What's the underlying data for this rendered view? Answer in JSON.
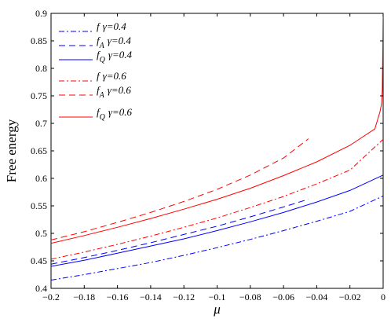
{
  "chart_data": {
    "type": "line",
    "xlabel": "μ",
    "ylabel": "Free energy",
    "xlim": [
      -0.2,
      0
    ],
    "ylim": [
      0.4,
      0.9
    ],
    "x_ticks": [
      -0.2,
      -0.18,
      -0.16,
      -0.14,
      -0.12,
      -0.1,
      -0.08,
      -0.06,
      -0.04,
      -0.02,
      0
    ],
    "x_tick_labels": [
      "−0.2",
      "−0.18",
      "−0.16",
      "−0.14",
      "−0.12",
      "−0.1",
      "−0.08",
      "−0.06",
      "−0.04",
      "−0.02",
      "0"
    ],
    "y_ticks": [
      0.4,
      0.45,
      0.5,
      0.55,
      0.6,
      0.65,
      0.7,
      0.75,
      0.8,
      0.85,
      0.9
    ],
    "y_tick_labels": [
      "0.4",
      "0.45",
      "0.5",
      "0.55",
      "0.6",
      "0.65",
      "0.7",
      "0.75",
      "0.8",
      "0.85",
      "0.9"
    ],
    "grid": false,
    "legend_position": "top-left",
    "series": [
      {
        "name": "f γ=0.4",
        "legend_main": "f",
        "legend_sub": "",
        "legend_suffix": "γ=0.4",
        "color": "#0000ff",
        "dash": "dashdot",
        "x": [
          -0.2,
          -0.18,
          -0.16,
          -0.14,
          -0.12,
          -0.1,
          -0.08,
          -0.06,
          -0.04,
          -0.02,
          0
        ],
        "y": [
          0.415,
          0.425,
          0.436,
          0.447,
          0.46,
          0.474,
          0.489,
          0.505,
          0.522,
          0.54,
          0.568
        ]
      },
      {
        "name": "f_A γ=0.4",
        "legend_main": "f",
        "legend_sub": "A",
        "legend_suffix": "γ=0.4",
        "color": "#0000ff",
        "dash": "dashed",
        "x": [
          -0.2,
          -0.18,
          -0.16,
          -0.14,
          -0.12,
          -0.1,
          -0.08,
          -0.06,
          -0.045
        ],
        "y": [
          0.444,
          0.456,
          0.469,
          0.483,
          0.498,
          0.513,
          0.53,
          0.548,
          0.562
        ]
      },
      {
        "name": "f_Q γ=0.4",
        "legend_main": "f",
        "legend_sub": "Q",
        "legend_suffix": "γ=0.4",
        "color": "#0000ff",
        "dash": "solid",
        "x": [
          -0.2,
          -0.18,
          -0.16,
          -0.14,
          -0.12,
          -0.1,
          -0.08,
          -0.06,
          -0.04,
          -0.02,
          0
        ],
        "y": [
          0.44,
          0.451,
          0.464,
          0.477,
          0.49,
          0.505,
          0.521,
          0.538,
          0.557,
          0.578,
          0.606
        ]
      },
      {
        "name": "f γ=0.6",
        "legend_main": "f",
        "legend_sub": "",
        "legend_suffix": "γ=0.6",
        "color": "#ff0000",
        "dash": "dashdot",
        "x": [
          -0.2,
          -0.18,
          -0.16,
          -0.14,
          -0.12,
          -0.1,
          -0.08,
          -0.06,
          -0.04,
          -0.02,
          0
        ],
        "y": [
          0.453,
          0.466,
          0.48,
          0.495,
          0.511,
          0.528,
          0.547,
          0.567,
          0.59,
          0.615,
          0.671
        ]
      },
      {
        "name": "f_A γ=0.6",
        "legend_main": "f",
        "legend_sub": "A",
        "legend_suffix": "γ=0.6",
        "color": "#ff0000",
        "dash": "dashed",
        "x": [
          -0.2,
          -0.18,
          -0.16,
          -0.14,
          -0.12,
          -0.1,
          -0.08,
          -0.06,
          -0.045
        ],
        "y": [
          0.488,
          0.503,
          0.52,
          0.538,
          0.558,
          0.58,
          0.606,
          0.637,
          0.672
        ]
      },
      {
        "name": "f_Q γ=0.6",
        "legend_main": "f",
        "legend_sub": "Q",
        "legend_suffix": "γ=0.6",
        "color": "#ff0000",
        "dash": "solid",
        "x": [
          -0.2,
          -0.18,
          -0.16,
          -0.14,
          -0.12,
          -0.1,
          -0.08,
          -0.06,
          -0.04,
          -0.02,
          -0.005,
          -0.002,
          -0.001,
          -0.0005,
          0
        ],
        "y": [
          0.482,
          0.496,
          0.511,
          0.527,
          0.544,
          0.562,
          0.582,
          0.605,
          0.63,
          0.66,
          0.69,
          0.72,
          0.735,
          0.76,
          0.9
        ]
      }
    ]
  }
}
